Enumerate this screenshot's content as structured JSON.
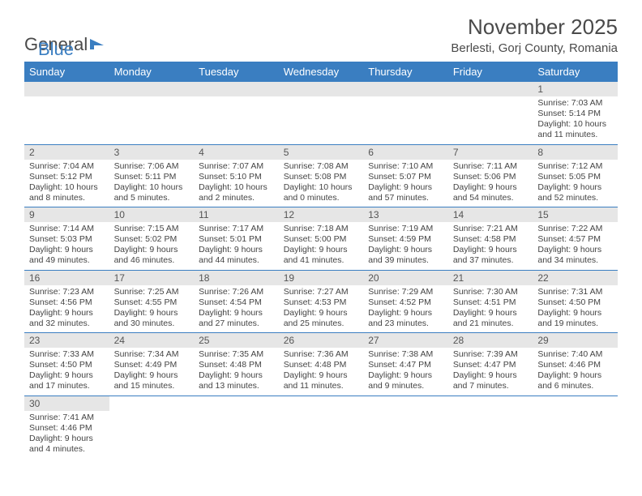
{
  "brand": {
    "part1": "General",
    "part2": "Blue"
  },
  "title": "November 2025",
  "subtitle": "Berlesti, Gorj County, Romania",
  "colors": {
    "accent": "#3a7ec1",
    "header_text": "#ffffff",
    "daynum_bg": "#e6e6e6",
    "text": "#4a4a4a",
    "body_bg": "#ffffff"
  },
  "weekdays": [
    "Sunday",
    "Monday",
    "Tuesday",
    "Wednesday",
    "Thursday",
    "Friday",
    "Saturday"
  ],
  "weeks": [
    [
      null,
      null,
      null,
      null,
      null,
      null,
      {
        "n": "1",
        "sunrise": "Sunrise: 7:03 AM",
        "sunset": "Sunset: 5:14 PM",
        "day1": "Daylight: 10 hours",
        "day2": "and 11 minutes."
      }
    ],
    [
      {
        "n": "2",
        "sunrise": "Sunrise: 7:04 AM",
        "sunset": "Sunset: 5:12 PM",
        "day1": "Daylight: 10 hours",
        "day2": "and 8 minutes."
      },
      {
        "n": "3",
        "sunrise": "Sunrise: 7:06 AM",
        "sunset": "Sunset: 5:11 PM",
        "day1": "Daylight: 10 hours",
        "day2": "and 5 minutes."
      },
      {
        "n": "4",
        "sunrise": "Sunrise: 7:07 AM",
        "sunset": "Sunset: 5:10 PM",
        "day1": "Daylight: 10 hours",
        "day2": "and 2 minutes."
      },
      {
        "n": "5",
        "sunrise": "Sunrise: 7:08 AM",
        "sunset": "Sunset: 5:08 PM",
        "day1": "Daylight: 10 hours",
        "day2": "and 0 minutes."
      },
      {
        "n": "6",
        "sunrise": "Sunrise: 7:10 AM",
        "sunset": "Sunset: 5:07 PM",
        "day1": "Daylight: 9 hours",
        "day2": "and 57 minutes."
      },
      {
        "n": "7",
        "sunrise": "Sunrise: 7:11 AM",
        "sunset": "Sunset: 5:06 PM",
        "day1": "Daylight: 9 hours",
        "day2": "and 54 minutes."
      },
      {
        "n": "8",
        "sunrise": "Sunrise: 7:12 AM",
        "sunset": "Sunset: 5:05 PM",
        "day1": "Daylight: 9 hours",
        "day2": "and 52 minutes."
      }
    ],
    [
      {
        "n": "9",
        "sunrise": "Sunrise: 7:14 AM",
        "sunset": "Sunset: 5:03 PM",
        "day1": "Daylight: 9 hours",
        "day2": "and 49 minutes."
      },
      {
        "n": "10",
        "sunrise": "Sunrise: 7:15 AM",
        "sunset": "Sunset: 5:02 PM",
        "day1": "Daylight: 9 hours",
        "day2": "and 46 minutes."
      },
      {
        "n": "11",
        "sunrise": "Sunrise: 7:17 AM",
        "sunset": "Sunset: 5:01 PM",
        "day1": "Daylight: 9 hours",
        "day2": "and 44 minutes."
      },
      {
        "n": "12",
        "sunrise": "Sunrise: 7:18 AM",
        "sunset": "Sunset: 5:00 PM",
        "day1": "Daylight: 9 hours",
        "day2": "and 41 minutes."
      },
      {
        "n": "13",
        "sunrise": "Sunrise: 7:19 AM",
        "sunset": "Sunset: 4:59 PM",
        "day1": "Daylight: 9 hours",
        "day2": "and 39 minutes."
      },
      {
        "n": "14",
        "sunrise": "Sunrise: 7:21 AM",
        "sunset": "Sunset: 4:58 PM",
        "day1": "Daylight: 9 hours",
        "day2": "and 37 minutes."
      },
      {
        "n": "15",
        "sunrise": "Sunrise: 7:22 AM",
        "sunset": "Sunset: 4:57 PM",
        "day1": "Daylight: 9 hours",
        "day2": "and 34 minutes."
      }
    ],
    [
      {
        "n": "16",
        "sunrise": "Sunrise: 7:23 AM",
        "sunset": "Sunset: 4:56 PM",
        "day1": "Daylight: 9 hours",
        "day2": "and 32 minutes."
      },
      {
        "n": "17",
        "sunrise": "Sunrise: 7:25 AM",
        "sunset": "Sunset: 4:55 PM",
        "day1": "Daylight: 9 hours",
        "day2": "and 30 minutes."
      },
      {
        "n": "18",
        "sunrise": "Sunrise: 7:26 AM",
        "sunset": "Sunset: 4:54 PM",
        "day1": "Daylight: 9 hours",
        "day2": "and 27 minutes."
      },
      {
        "n": "19",
        "sunrise": "Sunrise: 7:27 AM",
        "sunset": "Sunset: 4:53 PM",
        "day1": "Daylight: 9 hours",
        "day2": "and 25 minutes."
      },
      {
        "n": "20",
        "sunrise": "Sunrise: 7:29 AM",
        "sunset": "Sunset: 4:52 PM",
        "day1": "Daylight: 9 hours",
        "day2": "and 23 minutes."
      },
      {
        "n": "21",
        "sunrise": "Sunrise: 7:30 AM",
        "sunset": "Sunset: 4:51 PM",
        "day1": "Daylight: 9 hours",
        "day2": "and 21 minutes."
      },
      {
        "n": "22",
        "sunrise": "Sunrise: 7:31 AM",
        "sunset": "Sunset: 4:50 PM",
        "day1": "Daylight: 9 hours",
        "day2": "and 19 minutes."
      }
    ],
    [
      {
        "n": "23",
        "sunrise": "Sunrise: 7:33 AM",
        "sunset": "Sunset: 4:50 PM",
        "day1": "Daylight: 9 hours",
        "day2": "and 17 minutes."
      },
      {
        "n": "24",
        "sunrise": "Sunrise: 7:34 AM",
        "sunset": "Sunset: 4:49 PM",
        "day1": "Daylight: 9 hours",
        "day2": "and 15 minutes."
      },
      {
        "n": "25",
        "sunrise": "Sunrise: 7:35 AM",
        "sunset": "Sunset: 4:48 PM",
        "day1": "Daylight: 9 hours",
        "day2": "and 13 minutes."
      },
      {
        "n": "26",
        "sunrise": "Sunrise: 7:36 AM",
        "sunset": "Sunset: 4:48 PM",
        "day1": "Daylight: 9 hours",
        "day2": "and 11 minutes."
      },
      {
        "n": "27",
        "sunrise": "Sunrise: 7:38 AM",
        "sunset": "Sunset: 4:47 PM",
        "day1": "Daylight: 9 hours",
        "day2": "and 9 minutes."
      },
      {
        "n": "28",
        "sunrise": "Sunrise: 7:39 AM",
        "sunset": "Sunset: 4:47 PM",
        "day1": "Daylight: 9 hours",
        "day2": "and 7 minutes."
      },
      {
        "n": "29",
        "sunrise": "Sunrise: 7:40 AM",
        "sunset": "Sunset: 4:46 PM",
        "day1": "Daylight: 9 hours",
        "day2": "and 6 minutes."
      }
    ],
    [
      {
        "n": "30",
        "sunrise": "Sunrise: 7:41 AM",
        "sunset": "Sunset: 4:46 PM",
        "day1": "Daylight: 9 hours",
        "day2": "and 4 minutes."
      },
      null,
      null,
      null,
      null,
      null,
      null
    ]
  ]
}
